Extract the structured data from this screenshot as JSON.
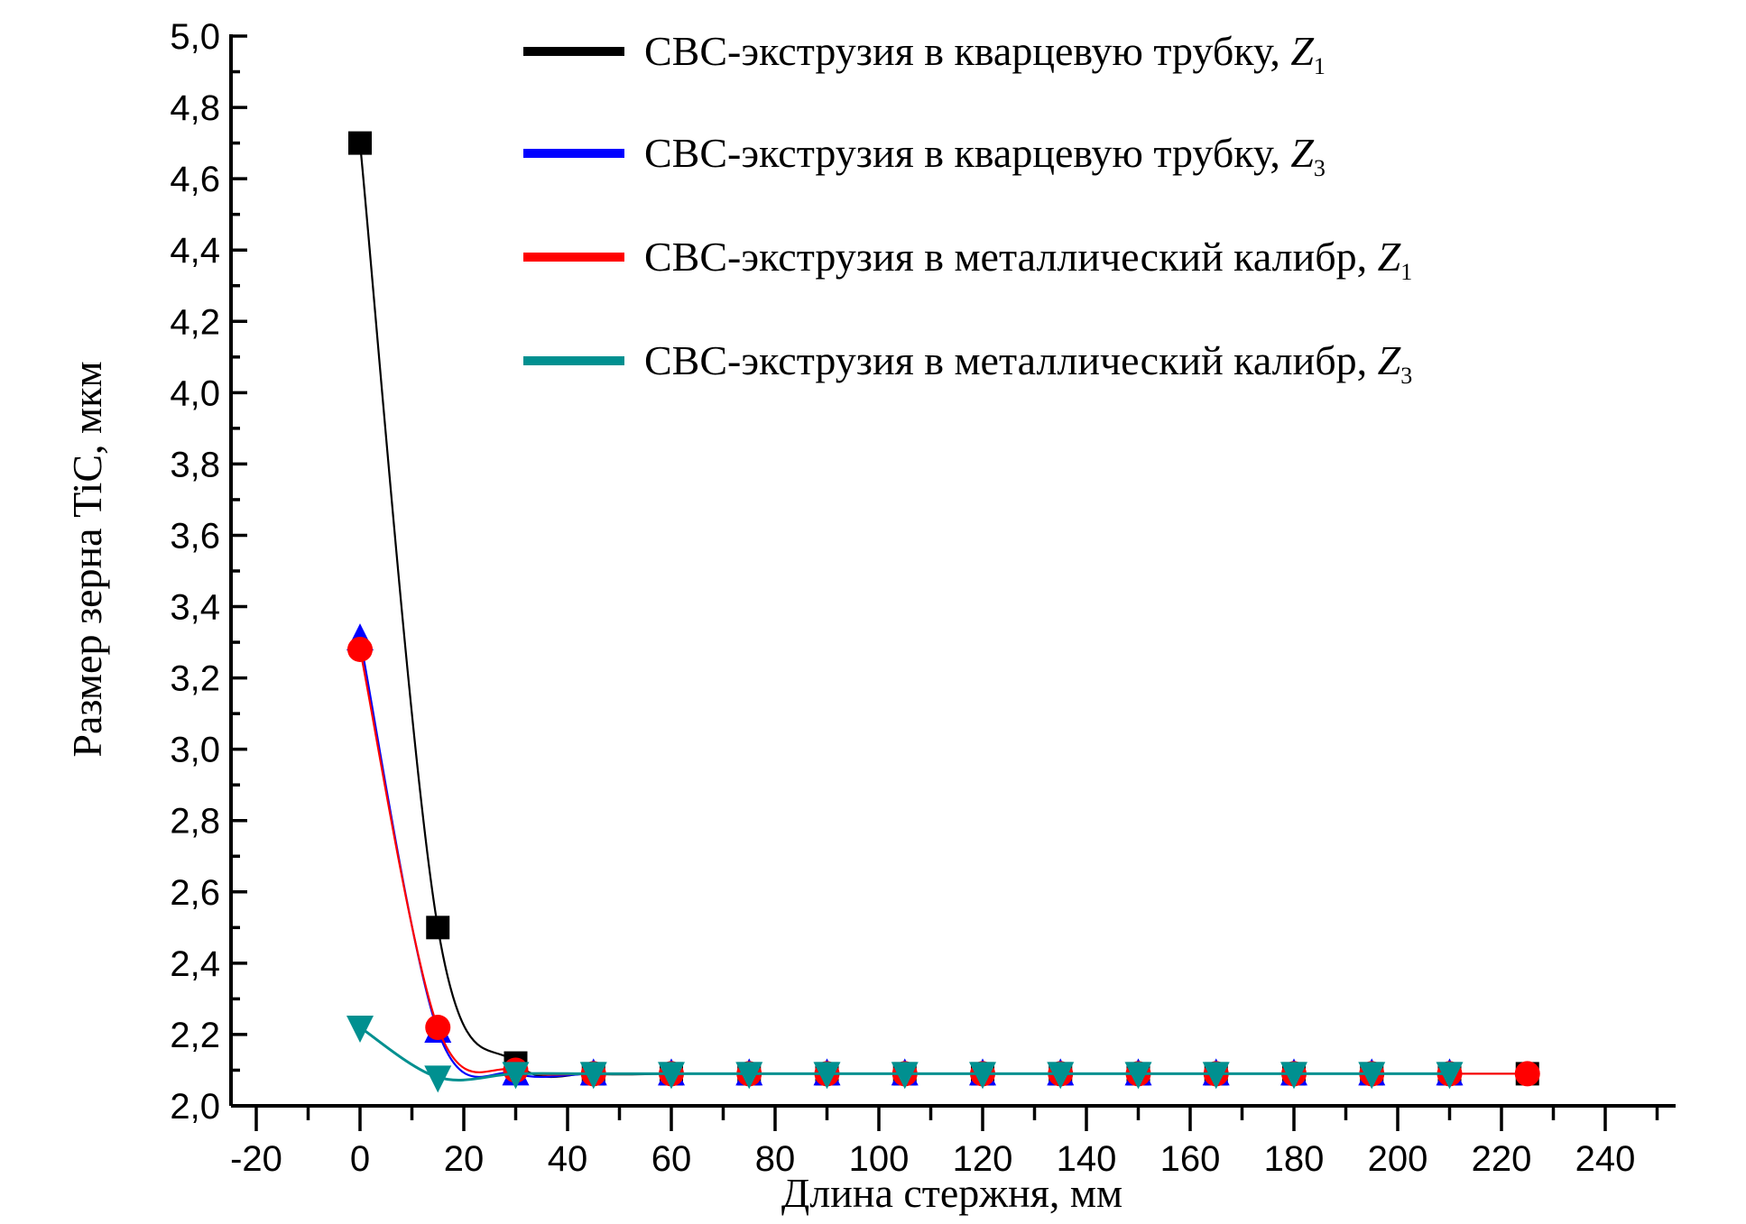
{
  "chart_data": {
    "type": "line",
    "title": "",
    "xlabel": "Длина стержня, мм",
    "ylabel": "Размер зерна TiC, мкм",
    "xlim": [
      -20,
      250
    ],
    "ylim": [
      2.0,
      5.0
    ],
    "xticks": [
      "-20",
      "0",
      "20",
      "40",
      "60",
      "80",
      "100",
      "120",
      "140",
      "160",
      "180",
      "200",
      "220",
      "240"
    ],
    "yticks": [
      "2,0",
      "2,2",
      "2,4",
      "2,6",
      "2,8",
      "3,0",
      "3,2",
      "3,4",
      "3,6",
      "3,8",
      "4,0",
      "4,2",
      "4,4",
      "4,6",
      "4,8",
      "5,0"
    ],
    "grid": false,
    "legend_position": "top-right",
    "series": [
      {
        "name": "СВС-экструзия в кварцевую трубку, ",
        "sub": "Z",
        "idx": "1",
        "color": "#000000",
        "marker": "square",
        "x": [
          0,
          15,
          30,
          45,
          60,
          75,
          90,
          105,
          120,
          135,
          150,
          165,
          180,
          195,
          210,
          225
        ],
        "y": [
          4.7,
          2.5,
          2.12,
          2.09,
          2.09,
          2.09,
          2.09,
          2.09,
          2.09,
          2.09,
          2.09,
          2.09,
          2.09,
          2.09,
          2.09,
          2.09
        ]
      },
      {
        "name": "СВС-экструзия в кварцевую трубку, ",
        "sub": "Z",
        "idx": "3",
        "color": "#0000ff",
        "marker": "triangle-up",
        "x": [
          0,
          15,
          30,
          45,
          60,
          75,
          90,
          105,
          120,
          135,
          150,
          165,
          180,
          195,
          210
        ],
        "y": [
          3.31,
          2.21,
          2.09,
          2.09,
          2.09,
          2.09,
          2.09,
          2.09,
          2.09,
          2.09,
          2.09,
          2.09,
          2.09,
          2.09,
          2.09
        ]
      },
      {
        "name": "СВС-экструзия в металлический калибр, ",
        "sub": "Z",
        "idx": "1",
        "color": "#ff0000",
        "marker": "circle",
        "x": [
          0,
          15,
          30,
          45,
          60,
          75,
          90,
          105,
          120,
          135,
          150,
          165,
          180,
          195,
          210,
          225
        ],
        "y": [
          3.28,
          2.22,
          2.1,
          2.09,
          2.09,
          2.09,
          2.09,
          2.09,
          2.09,
          2.09,
          2.09,
          2.09,
          2.09,
          2.09,
          2.09,
          2.09
        ]
      },
      {
        "name": "СВС-экструзия в металлический калибр, ",
        "sub": "Z",
        "idx": "3",
        "color": "#009090",
        "marker": "triangle-down",
        "x": [
          0,
          15,
          30,
          45,
          60,
          75,
          90,
          105,
          120,
          135,
          150,
          165,
          180,
          195,
          210
        ],
        "y": [
          2.22,
          2.08,
          2.09,
          2.09,
          2.09,
          2.09,
          2.09,
          2.09,
          2.09,
          2.09,
          2.09,
          2.09,
          2.09,
          2.09,
          2.09
        ]
      }
    ]
  }
}
